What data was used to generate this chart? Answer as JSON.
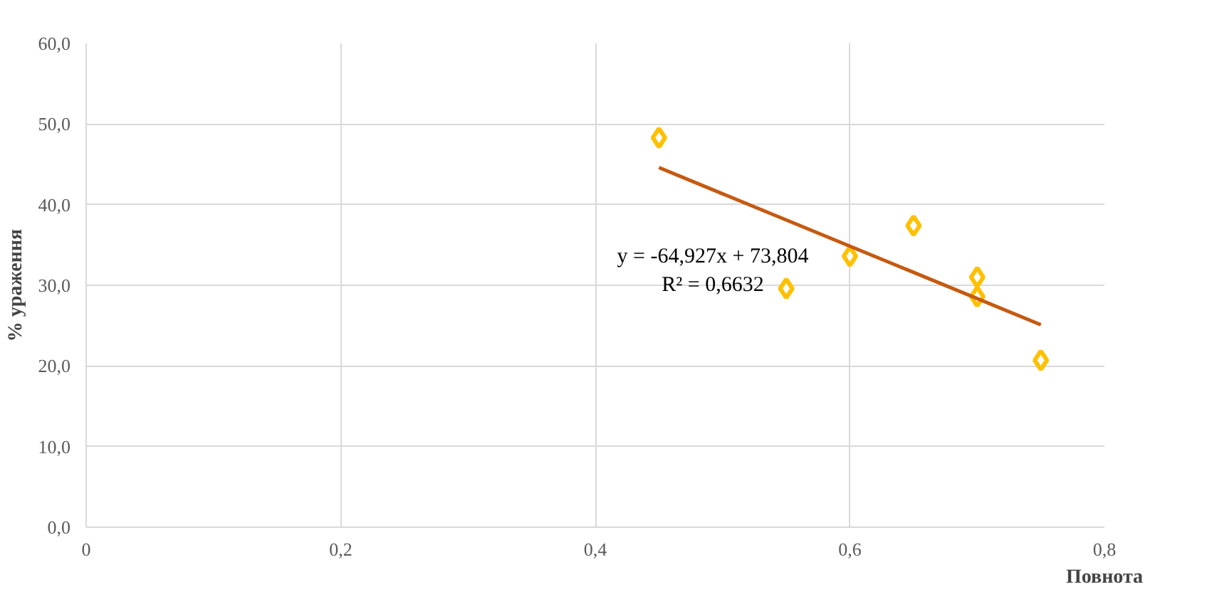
{
  "chart_data": {
    "type": "scatter",
    "xlabel": "Повнота",
    "ylabel": "% ураження",
    "series": [
      {
        "marker": "diamond",
        "color": "#ffc000",
        "x": [
          0.45,
          0.55,
          0.6,
          0.65,
          0.7,
          0.7,
          0.75
        ],
        "values": [
          48.3,
          29.6,
          33.6,
          37.4,
          31.0,
          28.6,
          20.7
        ]
      },
      {
        "type": "line",
        "color": "#c55a11",
        "x": [
          0.45,
          0.75
        ],
        "values": [
          44.6,
          25.1
        ]
      }
    ],
    "annotations": [
      "y = -64,927x + 73,804",
      "R² = 0,6632"
    ],
    "xlim": [
      0,
      0.8
    ],
    "ylim": [
      0,
      60
    ],
    "xticks": [
      0,
      {
        "value": 0.2,
        "label": "0,2"
      },
      {
        "value": 0.4,
        "label": "0,4"
      },
      {
        "value": 0.6,
        "label": "0,6"
      },
      {
        "value": 0.8,
        "label": "0,8"
      }
    ],
    "yticks": [
      {
        "value": 0,
        "label": "0,0"
      },
      {
        "value": 10,
        "label": "10,0"
      },
      {
        "value": 20,
        "label": "20,0"
      },
      {
        "value": 30,
        "label": "30,0"
      },
      {
        "value": 40,
        "label": "40,0"
      },
      {
        "value": 50,
        "label": "50,0"
      },
      {
        "value": 60,
        "label": "60,0"
      }
    ],
    "grid": true,
    "line_style": "solid"
  }
}
